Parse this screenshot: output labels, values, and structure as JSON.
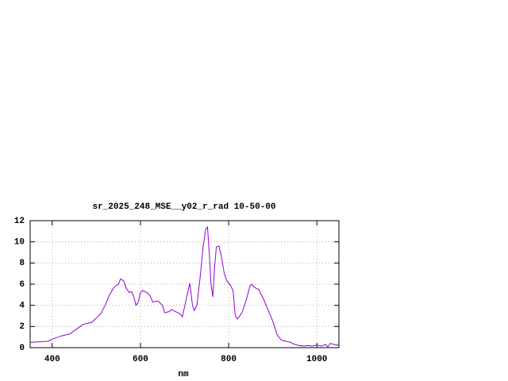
{
  "chart_data": {
    "type": "line",
    "title": "sr_2025_248_MSE__y02_r_rad 10-50-00",
    "x_label": "nm",
    "x": [
      350,
      370,
      390,
      400,
      420,
      440,
      460,
      470,
      480,
      490,
      500,
      510,
      520,
      530,
      540,
      550,
      555,
      562,
      568,
      575,
      580,
      585,
      590,
      595,
      600,
      605,
      615,
      622,
      628,
      635,
      640,
      650,
      655,
      665,
      670,
      680,
      690,
      695,
      705,
      712,
      718,
      722,
      728,
      735,
      742,
      748,
      752,
      756,
      760,
      764,
      768,
      772,
      778,
      784,
      790,
      796,
      804,
      810,
      815,
      820,
      830,
      840,
      848,
      852,
      858,
      868,
      880,
      890,
      900,
      910,
      920,
      930,
      940,
      950,
      960,
      970,
      980,
      990,
      1000,
      1010,
      1020,
      1025,
      1030,
      1040,
      1045,
      1050
    ],
    "values": [
      0.5,
      0.55,
      0.6,
      0.8,
      1.1,
      1.3,
      1.9,
      2.2,
      2.3,
      2.4,
      2.8,
      3.2,
      4.0,
      5.0,
      5.7,
      6.0,
      6.5,
      6.3,
      5.6,
      5.2,
      5.3,
      4.8,
      4.0,
      4.3,
      5.2,
      5.4,
      5.2,
      4.9,
      4.3,
      4.4,
      4.4,
      4.0,
      3.3,
      3.4,
      3.6,
      3.4,
      3.2,
      2.9,
      4.8,
      6.1,
      4.0,
      3.5,
      4.0,
      6.5,
      9.5,
      11.2,
      11.4,
      9.0,
      6.0,
      4.8,
      7.5,
      9.5,
      9.6,
      8.5,
      7.0,
      6.3,
      5.9,
      5.4,
      3.0,
      2.7,
      3.3,
      4.5,
      5.8,
      6.0,
      5.7,
      5.5,
      4.5,
      3.5,
      2.5,
      1.2,
      0.7,
      0.6,
      0.5,
      0.3,
      0.2,
      0.15,
      0.2,
      0.15,
      0.25,
      0.15,
      0.3,
      0.05,
      0.4,
      0.3,
      0.2,
      0.4
    ],
    "color": "#9400d3",
    "xlim": [
      350,
      1050
    ],
    "xticks": [
      400,
      600,
      800,
      1000
    ],
    "ylim": [
      0,
      12
    ],
    "yticks": [
      0,
      2,
      4,
      6,
      8,
      10,
      12
    ],
    "grid": true
  }
}
